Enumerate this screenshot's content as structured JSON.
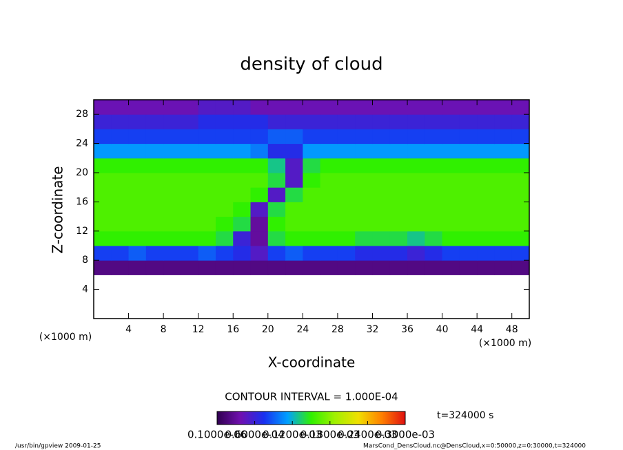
{
  "chart_data": {
    "type": "heatmap",
    "title": "density of cloud",
    "x_label": "X-coordinate",
    "y_label": "Z-coordinate",
    "x_unit_label": "(×1000 m)",
    "y_unit_label": "(×1000 m)",
    "contour_label": "CONTOUR INTERVAL = 1.000E-04",
    "time_label": "t=324000 s",
    "footer_left": "/usr/bin/gpview  2009-01-25",
    "footer_right": "MarsCond_DensCloud.nc@DensCloud,x=0:50000,z=0:30000,t=324000",
    "xlim": [
      0,
      50
    ],
    "ylim": [
      0,
      30
    ],
    "xticks": [
      4,
      8,
      12,
      16,
      20,
      24,
      28,
      32,
      36,
      40,
      44,
      48
    ],
    "yticks": [
      4,
      8,
      12,
      16,
      20,
      24,
      28
    ],
    "x": [
      1,
      3,
      5,
      7,
      9,
      11,
      13,
      15,
      17,
      19,
      21,
      23,
      25,
      27,
      29,
      31,
      33,
      35,
      37,
      39,
      41,
      43,
      45,
      47,
      49
    ],
    "y": [
      1,
      3,
      5,
      7,
      9,
      11,
      13,
      15,
      17,
      19,
      21,
      23,
      25,
      27,
      29
    ],
    "z": [
      [
        null,
        null,
        null,
        null,
        null,
        null,
        null,
        null,
        null,
        null,
        null,
        null,
        null,
        null,
        null,
        null,
        null,
        null,
        null,
        null,
        null,
        null,
        null,
        null,
        null
      ],
      [
        null,
        null,
        null,
        null,
        null,
        null,
        null,
        null,
        null,
        null,
        null,
        null,
        null,
        null,
        null,
        null,
        null,
        null,
        null,
        null,
        null,
        null,
        null,
        null,
        null
      ],
      [
        null,
        null,
        null,
        null,
        null,
        null,
        null,
        null,
        null,
        null,
        null,
        null,
        null,
        null,
        null,
        null,
        null,
        null,
        null,
        null,
        null,
        null,
        null,
        null,
        null
      ],
      [
        2e-05,
        2e-05,
        2e-05,
        2e-05,
        2e-05,
        2e-05,
        2e-05,
        2e-05,
        2e-05,
        2e-05,
        2e-05,
        2e-05,
        2e-05,
        2e-05,
        2e-05,
        2e-05,
        2e-05,
        2e-05,
        2e-05,
        2e-05,
        2e-05,
        2e-05,
        2e-05,
        2e-05,
        2e-05
      ],
      [
        8e-05,
        8e-05,
        9e-05,
        8e-05,
        8e-05,
        8e-05,
        9e-05,
        8e-05,
        7e-05,
        5e-05,
        8e-05,
        9e-05,
        8e-05,
        8e-05,
        8e-05,
        7e-05,
        7e-05,
        7e-05,
        6e-05,
        7e-05,
        8e-05,
        8e-05,
        8e-05,
        8e-05,
        8e-05
      ],
      [
        0.00015,
        0.00015,
        0.00015,
        0.00015,
        0.00015,
        0.00015,
        0.00015,
        0.00014,
        6e-05,
        3e-05,
        0.00014,
        0.00015,
        0.00015,
        0.00015,
        0.00015,
        0.00014,
        0.00014,
        0.00014,
        0.00013,
        0.00014,
        0.00015,
        0.00015,
        0.00015,
        0.00015,
        0.00015
      ],
      [
        0.00016,
        0.00016,
        0.00016,
        0.00016,
        0.00016,
        0.00016,
        0.00016,
        0.00015,
        0.00014,
        3e-05,
        0.00015,
        0.00016,
        0.00016,
        0.00016,
        0.00016,
        0.00016,
        0.00016,
        0.00016,
        0.00016,
        0.00016,
        0.00016,
        0.00016,
        0.00016,
        0.00016,
        0.00016
      ],
      [
        0.00016,
        0.00016,
        0.00016,
        0.00016,
        0.00016,
        0.00016,
        0.00016,
        0.00016,
        0.00015,
        5e-05,
        0.00014,
        0.00016,
        0.00016,
        0.00016,
        0.00016,
        0.00016,
        0.00016,
        0.00016,
        0.00016,
        0.00016,
        0.00016,
        0.00016,
        0.00016,
        0.00016,
        0.00016
      ],
      [
        0.00016,
        0.00016,
        0.00016,
        0.00016,
        0.00016,
        0.00016,
        0.00016,
        0.00016,
        0.00016,
        0.00015,
        5e-05,
        0.00014,
        0.00016,
        0.00016,
        0.00016,
        0.00016,
        0.00016,
        0.00016,
        0.00016,
        0.00016,
        0.00016,
        0.00016,
        0.00016,
        0.00016,
        0.00016
      ],
      [
        0.00016,
        0.00016,
        0.00016,
        0.00016,
        0.00016,
        0.00016,
        0.00016,
        0.00016,
        0.00016,
        0.00016,
        0.00014,
        5e-05,
        0.00015,
        0.00016,
        0.00016,
        0.00016,
        0.00016,
        0.00016,
        0.00016,
        0.00016,
        0.00016,
        0.00016,
        0.00016,
        0.00016,
        0.00016
      ],
      [
        0.00015,
        0.00015,
        0.00015,
        0.00015,
        0.00015,
        0.00015,
        0.00015,
        0.00015,
        0.00015,
        0.00015,
        0.00013,
        5e-05,
        0.00014,
        0.00015,
        0.00015,
        0.00015,
        0.00015,
        0.00015,
        0.00015,
        0.00015,
        0.00015,
        0.00015,
        0.00015,
        0.00015,
        0.00015
      ],
      [
        0.00011,
        0.00011,
        0.00011,
        0.00011,
        0.00011,
        0.00011,
        0.00011,
        0.00011,
        0.00011,
        0.0001,
        7e-05,
        7e-05,
        0.00011,
        0.00011,
        0.00011,
        0.00011,
        0.00011,
        0.00011,
        0.00011,
        0.00011,
        0.00011,
        0.00011,
        0.00011,
        0.00011,
        0.00011
      ],
      [
        8e-05,
        8e-05,
        8e-05,
        8e-05,
        8e-05,
        8e-05,
        8e-05,
        8e-05,
        8e-05,
        8e-05,
        9e-05,
        9e-05,
        8e-05,
        8e-05,
        8e-05,
        8e-05,
        8e-05,
        8e-05,
        8e-05,
        8e-05,
        8e-05,
        8e-05,
        8e-05,
        8e-05,
        8e-05
      ],
      [
        6e-05,
        6e-05,
        6e-05,
        6e-05,
        6e-05,
        6e-05,
        7e-05,
        7e-05,
        7e-05,
        7e-05,
        6e-05,
        6e-05,
        6e-05,
        6e-05,
        6e-05,
        6e-05,
        6e-05,
        6e-05,
        6e-05,
        6e-05,
        6e-05,
        6e-05,
        6e-05,
        6e-05,
        6e-05
      ],
      [
        4e-05,
        4e-05,
        4e-05,
        4e-05,
        4e-05,
        4e-05,
        5e-05,
        5e-05,
        5e-05,
        4e-05,
        4e-05,
        4e-05,
        4e-05,
        4e-05,
        4e-05,
        4e-05,
        4e-05,
        4e-05,
        4e-05,
        4e-05,
        4e-05,
        4e-05,
        4e-05,
        4e-05,
        4e-05
      ]
    ],
    "clim": [
      0,
      0.0003
    ],
    "colorbar_ticks": [
      {
        "value": 1e-07,
        "label": "0.1000e-06"
      },
      {
        "value": 6e-05,
        "label": "0.6000e-04"
      },
      {
        "value": 0.00012,
        "label": "0.1200e-03"
      },
      {
        "value": 0.00018,
        "label": "0.1800e-03"
      },
      {
        "value": 0.00024,
        "label": "0.2400e-03"
      },
      {
        "value": 0.0003,
        "label": "0.3000e-03"
      }
    ],
    "colors": [
      "#300050",
      "#7010b0",
      "#1830f0",
      "#00a0ff",
      "#30f000",
      "#a0f000",
      "#f0e000",
      "#ff8000",
      "#e01010"
    ]
  }
}
